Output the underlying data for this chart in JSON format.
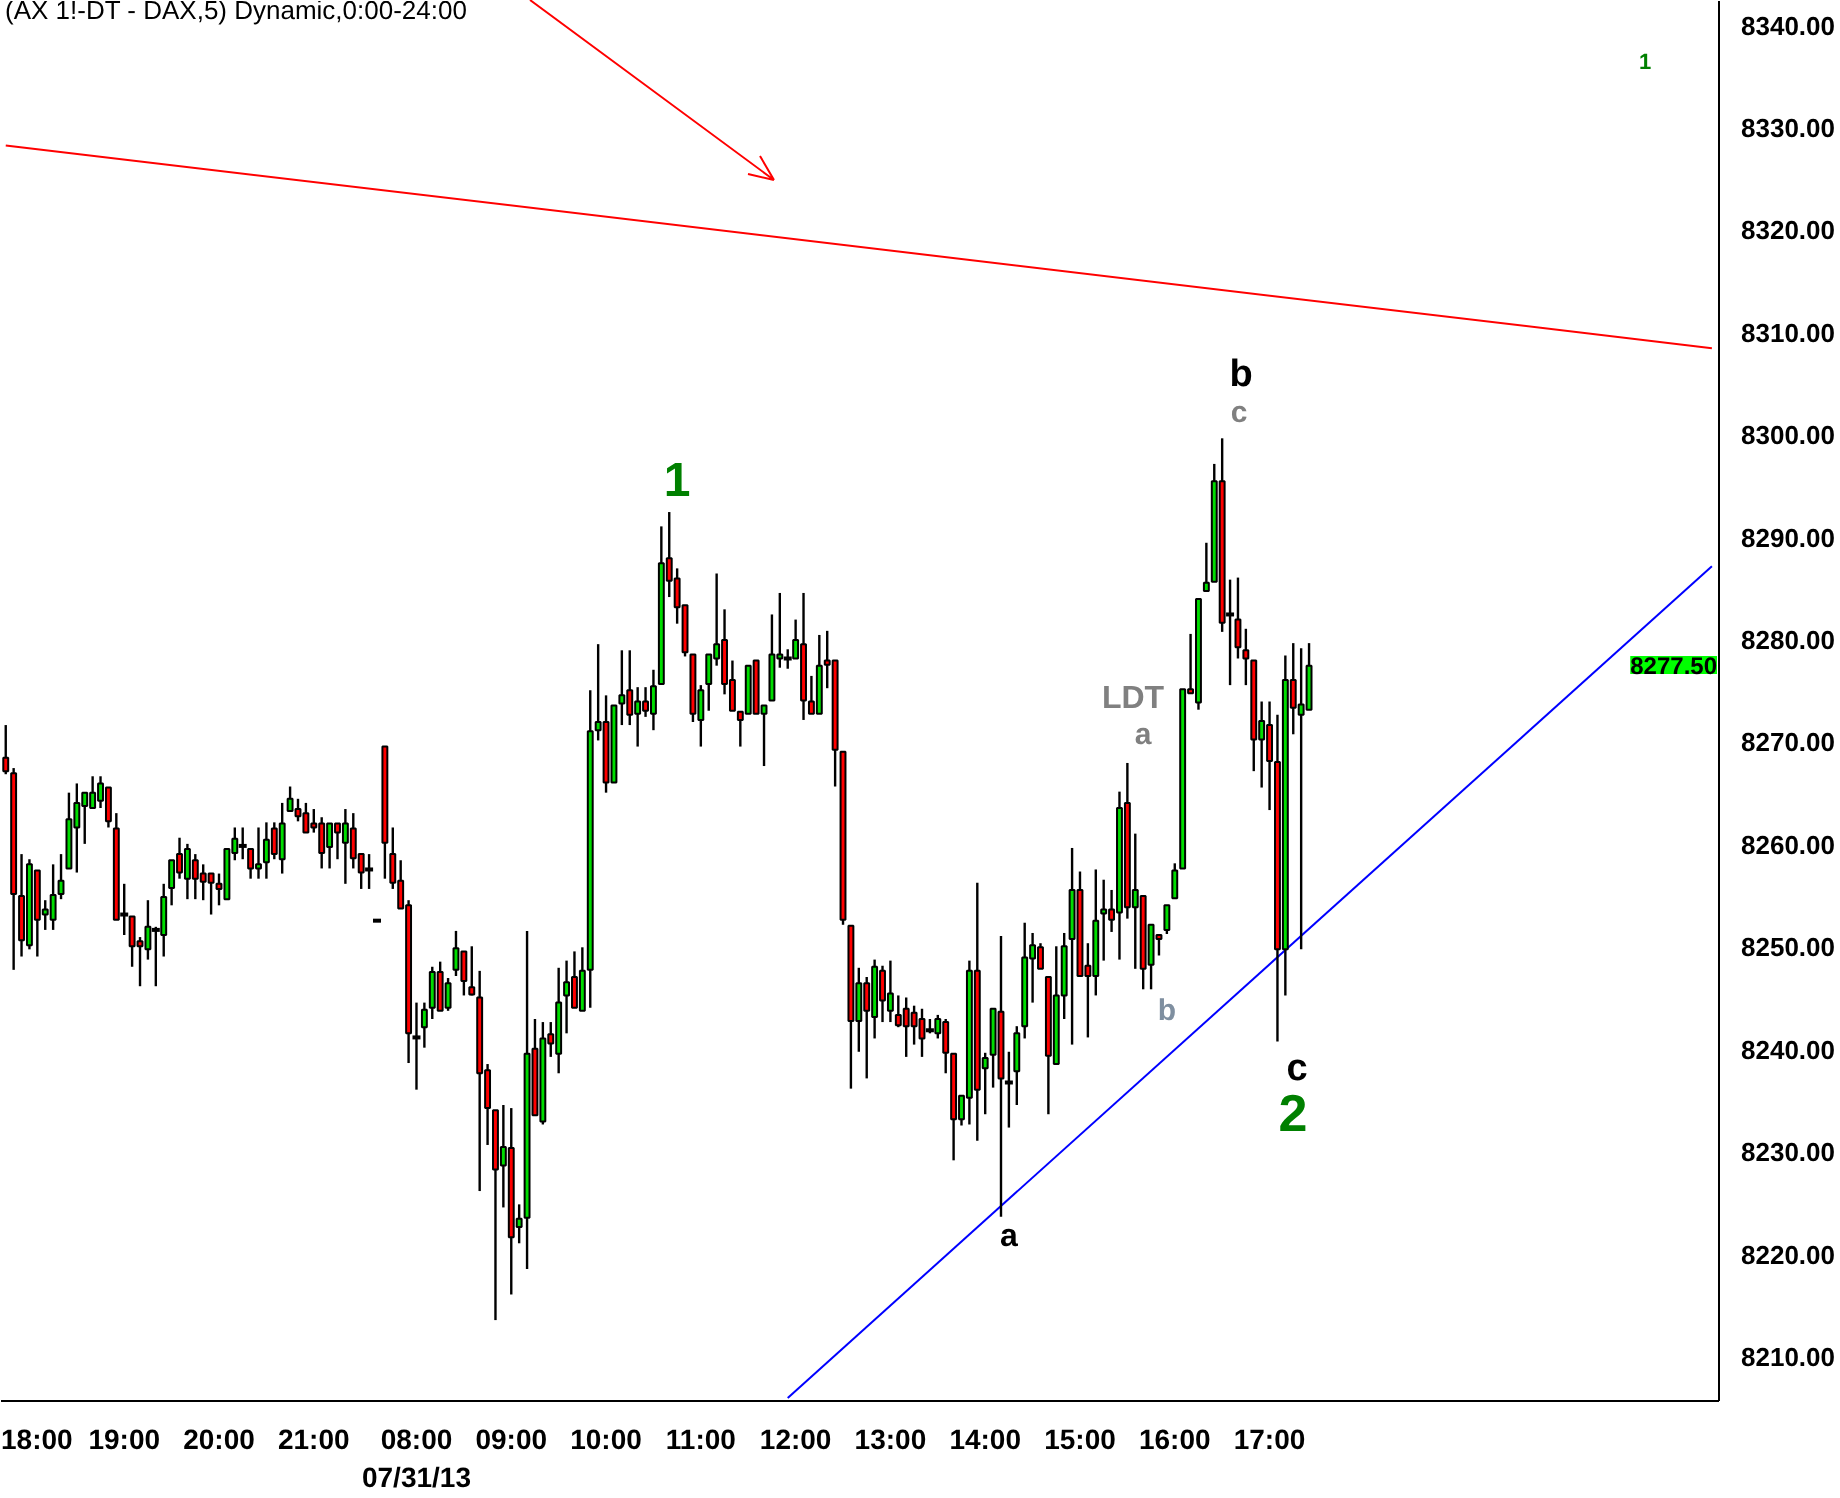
{
  "chart_data": {
    "type": "candlestick",
    "title": "(AX 1!-DT - DAX,5) Dynamic,0:00-24:00",
    "categories": [
      null,
      null,
      null,
      "18:00",
      null,
      null,
      null,
      null,
      null,
      null,
      null,
      null,
      null,
      null,
      null,
      "19:00",
      null,
      null,
      null,
      null,
      null,
      null,
      null,
      null,
      null,
      null,
      null,
      "20:00",
      null,
      null,
      null,
      null,
      null,
      null,
      null,
      null,
      null,
      null,
      null,
      "21:00",
      null,
      null,
      null,
      null,
      null,
      null,
      null,
      null,
      null,
      null,
      null,
      null,
      "08:00\n07/31/13",
      null,
      null,
      null,
      null,
      null,
      null,
      null,
      null,
      null,
      null,
      null,
      "09:00",
      null,
      null,
      null,
      null,
      null,
      null,
      null,
      null,
      null,
      null,
      null,
      "10:00",
      null,
      null,
      null,
      null,
      null,
      null,
      null,
      null,
      null,
      null,
      null,
      "11:00",
      null,
      null,
      null,
      null,
      null,
      null,
      null,
      null,
      null,
      null,
      null,
      "12:00",
      null,
      null,
      null,
      null,
      null,
      null,
      null,
      null,
      null,
      null,
      null,
      "13:00",
      null,
      null,
      null,
      null,
      null,
      null,
      null,
      null,
      null,
      null,
      null,
      "14:00",
      null,
      null,
      null,
      null,
      null,
      null,
      null,
      null,
      null,
      null,
      null,
      "15:00",
      null,
      null,
      null,
      null,
      null,
      null,
      null,
      null,
      null,
      null,
      null,
      "16:00",
      null,
      null,
      null,
      null,
      null,
      null,
      null,
      null,
      null,
      null,
      null,
      "17:00",
      null,
      null,
      null,
      null,
      null,
      null,
      null,
      null,
      null,
      null,
      null,
      null,
      null,
      null,
      null,
      null,
      null,
      null,
      null,
      null,
      null,
      null,
      null,
      null,
      null,
      null,
      null,
      null,
      null,
      null,
      null,
      null,
      null,
      null,
      null,
      null,
      null,
      null,
      null,
      null,
      null,
      null,
      null,
      null,
      null,
      null,
      null,
      null,
      null,
      null,
      null,
      null,
      null,
      null,
      null,
      null
    ],
    "ohlc": [
      [
        8268.5,
        8271.7,
        8266.9,
        8267.2
      ],
      [
        8267.0,
        8267.5,
        8247.8,
        8255.2
      ],
      [
        8255.0,
        8259.1,
        8249.1,
        8250.7
      ],
      [
        8250.2,
        8258.6,
        8249.8,
        8258.1
      ],
      [
        8257.5,
        8257.5,
        8249.1,
        8252.7
      ],
      [
        8253.2,
        8254.6,
        8251.7,
        8253.7
      ],
      [
        8252.7,
        8258.1,
        8251.7,
        8255.1
      ],
      [
        8255.2,
        8259.1,
        8254.7,
        8256.5
      ],
      [
        8257.7,
        8265.1,
        8257.7,
        8262.5
      ],
      [
        8261.7,
        8266.0,
        8257.3,
        8264.1
      ],
      [
        8263.8,
        8265.1,
        8260.1,
        8265.1
      ],
      [
        8263.6,
        8266.7,
        8263.6,
        8265.1
      ],
      [
        8264.3,
        8266.7,
        8263.6,
        8266.0
      ],
      [
        8265.6,
        8265.6,
        8261.7,
        8262.3
      ],
      [
        8261.6,
        8263.1,
        8252.7,
        8252.7
      ],
      [
        8253.2,
        8256.2,
        8251.2,
        8253.2
      ],
      [
        8253.0,
        8253.0,
        8248.1,
        8250.1
      ],
      [
        8250.6,
        8251.0,
        8246.2,
        8250.1
      ],
      [
        8249.8,
        8254.6,
        8248.8,
        8252.0
      ],
      [
        8251.7,
        8252.0,
        8246.2,
        8251.7
      ],
      [
        8251.2,
        8256.2,
        8249.1,
        8254.9
      ],
      [
        8255.8,
        8258.5,
        8254.1,
        8258.5
      ],
      [
        8259.1,
        8260.7,
        8256.7,
        8257.3
      ],
      [
        8256.7,
        8260.1,
        8254.7,
        8259.6
      ],
      [
        8258.5,
        8259.1,
        8254.7,
        8256.7
      ],
      [
        8257.2,
        8258.1,
        8254.6,
        8256.4
      ],
      [
        8257.2,
        8257.2,
        8253.2,
        8256.3
      ],
      [
        8256.2,
        8257.2,
        8254.1,
        8255.7
      ],
      [
        8254.7,
        8259.6,
        8254.7,
        8259.6
      ],
      [
        8259.2,
        8261.7,
        8258.5,
        8260.6
      ],
      [
        8259.9,
        8261.7,
        8258.6,
        8259.9
      ],
      [
        8259.6,
        8259.6,
        8256.7,
        8257.7
      ],
      [
        8257.7,
        8261.7,
        8256.7,
        8258.1
      ],
      [
        8258.3,
        8262.2,
        8256.7,
        8260.5
      ],
      [
        8261.6,
        8262.2,
        8258.6,
        8259.1
      ],
      [
        8258.6,
        8264.1,
        8257.2,
        8262.1
      ],
      [
        8263.3,
        8265.7,
        8263.3,
        8264.5
      ],
      [
        8263.5,
        8264.5,
        8262.3,
        8262.8
      ],
      [
        8263.1,
        8264.1,
        8261.2,
        8261.2
      ],
      [
        8262.1,
        8263.5,
        8261.2,
        8261.7
      ],
      [
        8262.1,
        8262.7,
        8257.7,
        8259.2
      ],
      [
        8259.8,
        8262.1,
        8257.7,
        8262.1
      ],
      [
        8262.1,
        8262.1,
        8258.6,
        8261.2
      ],
      [
        8260.2,
        8263.5,
        8256.2,
        8262.1
      ],
      [
        8261.6,
        8263.1,
        8257.7,
        8258.7
      ],
      [
        8259.1,
        8259.1,
        8255.7,
        8257.3
      ],
      [
        8257.6,
        8259.1,
        8255.7,
        8257.6
      ],
      [
        8252.6,
        8252.6,
        8252.6,
        8252.6
      ],
      [
        8269.6,
        8269.6,
        8256.7,
        8260.2
      ],
      [
        8259.1,
        8261.7,
        8255.7,
        8256.3
      ],
      [
        8256.5,
        8258.5,
        8253.8,
        8253.8
      ],
      [
        8254.1,
        8254.6,
        8238.7,
        8241.6
      ],
      [
        8241.2,
        8244.6,
        8236.1,
        8241.2
      ],
      [
        8242.2,
        8244.6,
        8240.2,
        8243.9
      ],
      [
        8244.1,
        8248.1,
        8243.0,
        8247.6
      ],
      [
        8247.6,
        8248.6,
        8243.8,
        8243.8
      ],
      [
        8244.1,
        8247.0,
        8243.8,
        8246.5
      ],
      [
        8247.8,
        8251.6,
        8247.2,
        8249.9
      ],
      [
        8249.6,
        8249.6,
        8245.3,
        8246.7
      ],
      [
        8246.1,
        8250.1,
        8245.3,
        8245.4
      ],
      [
        8245.1,
        8247.7,
        8226.2,
        8237.7
      ],
      [
        8238.0,
        8238.6,
        8230.7,
        8234.3
      ],
      [
        8234.1,
        8234.1,
        8213.6,
        8228.3
      ],
      [
        8228.7,
        8234.6,
        8224.6,
        8230.5
      ],
      [
        8230.4,
        8234.3,
        8216.1,
        8221.7
      ],
      [
        8222.7,
        8224.9,
        8221.1,
        8223.5
      ],
      [
        8223.6,
        8251.6,
        8218.6,
        8239.6
      ],
      [
        8240.1,
        8243.0,
        8233.6,
        8233.6
      ],
      [
        8233.0,
        8242.7,
        8232.7,
        8241.1
      ],
      [
        8241.5,
        8242.7,
        8239.3,
        8240.6
      ],
      [
        8239.6,
        8248.0,
        8237.7,
        8244.6
      ],
      [
        8245.3,
        8248.7,
        8241.6,
        8246.6
      ],
      [
        8247.1,
        8249.6,
        8244.1,
        8244.1
      ],
      [
        8243.8,
        8250.0,
        8243.8,
        8247.7
      ],
      [
        8247.8,
        8275.1,
        8244.1,
        8271.1
      ],
      [
        8271.2,
        8279.6,
        8270.2,
        8272.0
      ],
      [
        8272.0,
        8274.6,
        8265.1,
        8266.1
      ],
      [
        8266.1,
        8273.6,
        8266.1,
        8273.6
      ],
      [
        8273.8,
        8279.0,
        8271.7,
        8274.6
      ],
      [
        8275.1,
        8279.0,
        8271.7,
        8272.7
      ],
      [
        8272.8,
        8275.4,
        8269.6,
        8274.0
      ],
      [
        8274.0,
        8275.4,
        8272.5,
        8273.1
      ],
      [
        8272.8,
        8277.1,
        8271.2,
        8275.5
      ],
      [
        8275.7,
        8291.1,
        8275.7,
        8287.5
      ],
      [
        8288.0,
        8292.5,
        8284.2,
        8285.8
      ],
      [
        8286.0,
        8287.0,
        8281.6,
        8283.2
      ],
      [
        8283.4,
        8283.4,
        8278.4,
        8278.8
      ],
      [
        8278.6,
        8278.6,
        8272.0,
        8272.8
      ],
      [
        8272.2,
        8275.6,
        8269.6,
        8275.1
      ],
      [
        8275.7,
        8278.6,
        8273.1,
        8278.6
      ],
      [
        8278.2,
        8286.5,
        8277.5,
        8279.6
      ],
      [
        8280.0,
        8283.0,
        8274.7,
        8275.7
      ],
      [
        8276.1,
        8278.0,
        8273.1,
        8273.1
      ],
      [
        8273.0,
        8273.0,
        8269.6,
        8272.2
      ],
      [
        8272.8,
        8277.5,
        8272.8,
        8277.5
      ],
      [
        8278.0,
        8278.0,
        8272.8,
        8272.8
      ],
      [
        8272.8,
        8273.6,
        8267.7,
        8273.6
      ],
      [
        8274.1,
        8282.5,
        8274.1,
        8278.6
      ],
      [
        8278.2,
        8284.6,
        8277.3,
        8278.6
      ],
      [
        8278.2,
        8279.1,
        8277.2,
        8278.2
      ],
      [
        8278.2,
        8282.0,
        8278.2,
        8280.0
      ],
      [
        8279.6,
        8284.6,
        8272.2,
        8274.1
      ],
      [
        8274.0,
        8276.5,
        8272.8,
        8272.8
      ],
      [
        8272.8,
        8280.5,
        8272.8,
        8277.5
      ],
      [
        8278.0,
        8280.9,
        8275.3,
        8277.6
      ],
      [
        8278.0,
        8278.0,
        8265.7,
        8269.3
      ],
      [
        8269.1,
        8269.1,
        8252.2,
        8252.7
      ],
      [
        8252.1,
        8252.1,
        8236.2,
        8242.8
      ],
      [
        8242.8,
        8248.0,
        8239.8,
        8246.5
      ],
      [
        8246.5,
        8247.1,
        8237.2,
        8243.8
      ],
      [
        8243.2,
        8248.8,
        8241.1,
        8248.1
      ],
      [
        8247.7,
        8248.2,
        8242.7,
        8244.8
      ],
      [
        8243.8,
        8248.7,
        8242.7,
        8245.5
      ],
      [
        8243.4,
        8245.3,
        8242.2,
        8242.4
      ],
      [
        8244.0,
        8245.1,
        8239.3,
        8242.3
      ],
      [
        8243.6,
        8244.3,
        8240.5,
        8242.3
      ],
      [
        8243.0,
        8244.0,
        8239.3,
        8241.1
      ],
      [
        8241.9,
        8243.0,
        8241.6,
        8241.9
      ],
      [
        8241.6,
        8243.4,
        8241.1,
        8243.0
      ],
      [
        8242.7,
        8243.0,
        8237.7,
        8239.7
      ],
      [
        8239.6,
        8239.6,
        8229.2,
        8233.2
      ],
      [
        8233.2,
        8235.5,
        8232.6,
        8235.5
      ],
      [
        8235.3,
        8248.7,
        8232.7,
        8247.7
      ],
      [
        8247.7,
        8256.3,
        8231.1,
        8236.1
      ],
      [
        8238.2,
        8239.7,
        8233.7,
        8239.2
      ],
      [
        8239.5,
        8244.0,
        8236.3,
        8244.0
      ],
      [
        8243.7,
        8251.1,
        8223.7,
        8237.2
      ],
      [
        8236.8,
        8239.8,
        8232.4,
        8236.8
      ],
      [
        8237.9,
        8242.3,
        8234.6,
        8241.6
      ],
      [
        8242.3,
        8252.4,
        8241.1,
        8249.0
      ],
      [
        8248.9,
        8251.4,
        8244.6,
        8250.2
      ],
      [
        8250.0,
        8250.4,
        8247.9,
        8247.9
      ],
      [
        8247.1,
        8247.1,
        8233.7,
        8239.4
      ],
      [
        8238.6,
        8250.1,
        8238.6,
        8245.3
      ],
      [
        8245.3,
        8251.4,
        8243.0,
        8250.1
      ],
      [
        8250.8,
        8259.7,
        8240.5,
        8255.6
      ],
      [
        8255.6,
        8257.4,
        8247.2,
        8247.2
      ],
      [
        8248.2,
        8250.4,
        8241.2,
        8247.2
      ],
      [
        8247.2,
        8257.6,
        8245.3,
        8252.6
      ],
      [
        8253.3,
        8256.6,
        8248.7,
        8253.7
      ],
      [
        8253.7,
        8255.6,
        8251.5,
        8252.7
      ],
      [
        8253.4,
        8265.2,
        8248.8,
        8263.6
      ],
      [
        8264.1,
        8268.0,
        8252.8,
        8253.9
      ],
      [
        8253.9,
        8261.1,
        8247.9,
        8255.6
      ],
      [
        8255.0,
        8255.0,
        8245.9,
        8247.9
      ],
      [
        8248.3,
        8252.2,
        8245.9,
        8252.2
      ],
      [
        8251.2,
        8251.2,
        8249.2,
        8250.8
      ],
      [
        8251.7,
        8254.1,
        8251.3,
        8254.1
      ],
      [
        8254.8,
        8258.2,
        8254.8,
        8257.5
      ],
      [
        8257.7,
        8275.2,
        8257.7,
        8275.2
      ],
      [
        8275.2,
        8280.6,
        8274.8,
        8274.8
      ],
      [
        8273.9,
        8284.0,
        8273.2,
        8284.0
      ],
      [
        8284.8,
        8289.5,
        8284.8,
        8285.6
      ],
      [
        8285.7,
        8297.2,
        8285.7,
        8295.5
      ],
      [
        8295.5,
        8299.7,
        8280.8,
        8281.7
      ],
      [
        8282.5,
        8285.9,
        8275.6,
        8282.5
      ],
      [
        8282.0,
        8286.1,
        8278.2,
        8279.3
      ],
      [
        8279.0,
        8281.1,
        8275.6,
        8278.2
      ],
      [
        8278.0,
        8278.0,
        8267.2,
        8270.3
      ],
      [
        8270.3,
        8274.0,
        8265.6,
        8272.1
      ],
      [
        8271.7,
        8274.0,
        8263.4,
        8268.2
      ],
      [
        8268.1,
        8272.7,
        8240.8,
        8249.8
      ],
      [
        8249.8,
        8278.5,
        8245.3,
        8276.1
      ],
      [
        8276.1,
        8279.7,
        8270.8,
        8273.4
      ],
      [
        8272.7,
        8279.2,
        8249.8,
        8273.7
      ],
      [
        8273.2,
        8279.7,
        8273.2,
        8277.5
      ],
      null,
      null,
      null,
      null,
      null,
      null,
      null,
      null,
      null,
      null,
      null,
      null,
      null,
      null,
      null,
      null,
      null,
      null,
      null,
      null,
      null,
      null,
      null,
      null,
      null,
      null,
      null,
      null,
      null,
      null,
      null,
      null,
      null,
      null,
      null,
      null,
      null,
      null,
      null,
      null,
      null,
      null,
      null,
      null,
      null,
      null,
      null,
      null,
      null,
      null,
      null
    ],
    "colors": [
      "#ff0000",
      "#ff0000",
      "#ff0000",
      "#00dd00",
      "#ff0000",
      "#00dd00",
      "#00dd00",
      "#00dd00",
      "#00dd00",
      "#00dd00",
      "#00dd00",
      "#00dd00",
      "#00dd00",
      "#ff0000",
      "#ff0000",
      "#000000",
      "#ff0000",
      "#ff0000",
      "#00dd00",
      "#000000",
      "#00dd00",
      "#00dd00",
      "#ff0000",
      "#00dd00",
      "#ff0000",
      "#ff0000",
      "#ff0000",
      "#ff0000",
      "#00dd00",
      "#00dd00",
      "#000000",
      "#ff0000",
      "#00dd00",
      "#00dd00",
      "#ff0000",
      "#00dd00",
      "#00dd00",
      "#ff0000",
      "#ff0000",
      "#ff0000",
      "#ff0000",
      "#00dd00",
      "#ff0000",
      "#00dd00",
      "#ff0000",
      "#ff0000",
      "#000000",
      "#000000",
      "#ff0000",
      "#ff0000",
      "#ff0000",
      "#ff0000",
      "#000000",
      "#00dd00",
      "#00dd00",
      "#ff0000",
      "#00dd00",
      "#00dd00",
      "#ff0000",
      "#ff0000",
      "#ff0000",
      "#ff0000",
      "#ff0000",
      "#00dd00",
      "#ff0000",
      "#00dd00",
      "#00dd00",
      "#ff0000",
      "#00dd00",
      "#ff0000",
      "#00dd00",
      "#00dd00",
      "#ff0000",
      "#00dd00",
      "#00dd00",
      "#00dd00",
      "#ff0000",
      "#00dd00",
      "#00dd00",
      "#ff0000",
      "#00dd00",
      "#ff0000",
      "#00dd00",
      "#00dd00",
      "#ff0000",
      "#ff0000",
      "#ff0000",
      "#ff0000",
      "#00dd00",
      "#00dd00",
      "#00dd00",
      "#ff0000",
      "#ff0000",
      "#ff0000",
      "#00dd00",
      "#ff0000",
      "#00dd00",
      "#00dd00",
      "#00dd00",
      "#000000",
      "#00dd00",
      "#ff0000",
      "#ff0000",
      "#00dd00",
      "#ff0000",
      "#ff0000",
      "#ff0000",
      "#ff0000",
      "#00dd00",
      "#ff0000",
      "#00dd00",
      "#ff0000",
      "#00dd00",
      "#ff0000",
      "#ff0000",
      "#ff0000",
      "#ff0000",
      "#000000",
      "#00dd00",
      "#ff0000",
      "#ff0000",
      "#00dd00",
      "#00dd00",
      "#ff0000",
      "#00dd00",
      "#00dd00",
      "#ff0000",
      "#000000",
      "#00dd00",
      "#00dd00",
      "#00dd00",
      "#ff0000",
      "#ff0000",
      "#00dd00",
      "#00dd00",
      "#00dd00",
      "#ff0000",
      "#ff0000",
      "#00dd00",
      "#00dd00",
      "#ff0000",
      "#00dd00",
      "#ff0000",
      "#00dd00",
      "#ff0000",
      "#00dd00",
      "#ff0000",
      "#00dd00",
      "#00dd00",
      "#00dd00",
      "#ff0000",
      "#00dd00",
      "#00dd00",
      "#00dd00",
      "#ff0000",
      "#000000",
      "#ff0000",
      "#ff0000",
      "#ff0000",
      "#00dd00",
      "#ff0000",
      "#ff0000",
      "#00dd00",
      "#ff0000",
      "#00dd00",
      "#00dd00",
      null,
      null,
      null,
      null,
      null,
      null,
      null,
      null,
      null,
      null,
      null,
      null,
      null,
      null,
      null,
      null,
      null,
      null,
      null,
      null,
      null,
      null,
      null,
      null,
      null,
      null,
      null,
      null,
      null,
      null,
      null,
      null,
      null,
      null,
      null,
      null,
      null,
      null,
      null,
      null,
      null,
      null,
      null,
      null,
      null,
      null,
      null,
      null,
      null,
      null,
      null
    ],
    "series": [
      {
        "type": "line",
        "color": "#ff0000",
        "values": [
          8328.3,
          null,
          null,
          null,
          null,
          null,
          null,
          null,
          null,
          null,
          null,
          null,
          null,
          null,
          null,
          null,
          null,
          null,
          null,
          null,
          null,
          null,
          null,
          null,
          null,
          null,
          null,
          null,
          null,
          null,
          null,
          null,
          null,
          null,
          null,
          null,
          null,
          null,
          null,
          null,
          null,
          null,
          null,
          null,
          null,
          null,
          null,
          null,
          null,
          null,
          null,
          null,
          null,
          null,
          null,
          null,
          null,
          null,
          null,
          null,
          null,
          null,
          null,
          null,
          null,
          null,
          null,
          null,
          null,
          null,
          null,
          null,
          null,
          null,
          null,
          null,
          null,
          null,
          null,
          null,
          null,
          null,
          null,
          null,
          null,
          null,
          null,
          null,
          null,
          null,
          null,
          null,
          null,
          null,
          null,
          null,
          null,
          null,
          null,
          null,
          null,
          null,
          null,
          null,
          null,
          null,
          null,
          null,
          null,
          null,
          null,
          null,
          null,
          null,
          null,
          null,
          null,
          null,
          null,
          null,
          null,
          null,
          null,
          null,
          null,
          null,
          null,
          null,
          null,
          null,
          null,
          null,
          null,
          null,
          null,
          null,
          null,
          null,
          null,
          null,
          null,
          null,
          null,
          null,
          null,
          null,
          null,
          null,
          null,
          null,
          null,
          null,
          null,
          null,
          null,
          null,
          null,
          null,
          null,
          null,
          null,
          null,
          null,
          null,
          null,
          null,
          null,
          null,
          null,
          null,
          null,
          null,
          null,
          null,
          null,
          null,
          null,
          null,
          null,
          null,
          null,
          null,
          null,
          null,
          null,
          null,
          null,
          null,
          null,
          null,
          null,
          null,
          null,
          null,
          null,
          null,
          null,
          null,
          null,
          null,
          null,
          null,
          null,
          null,
          null,
          null,
          null,
          null,
          null,
          null,
          null,
          null,
          null,
          null,
          null,
          null,
          8308.5
        ]
      },
      {
        "type": "line",
        "color": "#0000ff",
        "values": [
          null,
          null,
          null,
          null,
          null,
          null,
          null,
          null,
          null,
          null,
          null,
          null,
          null,
          null,
          null,
          null,
          null,
          null,
          null,
          null,
          null,
          null,
          null,
          null,
          null,
          null,
          null,
          null,
          null,
          null,
          null,
          null,
          null,
          null,
          null,
          null,
          null,
          null,
          null,
          null,
          null,
          null,
          null,
          null,
          null,
          null,
          null,
          null,
          null,
          null,
          null,
          null,
          null,
          null,
          null,
          null,
          null,
          null,
          null,
          null,
          null,
          null,
          null,
          null,
          null,
          null,
          null,
          null,
          null,
          null,
          null,
          null,
          null,
          null,
          null,
          null,
          null,
          null,
          null,
          null,
          null,
          null,
          null,
          null,
          null,
          null,
          null,
          null,
          null,
          null,
          null,
          null,
          null,
          null,
          null,
          null,
          null,
          null,
          null,
          8206.0,
          null,
          null,
          null,
          null,
          null,
          null,
          null,
          null,
          null,
          null,
          null,
          null,
          null,
          null,
          null,
          null,
          null,
          null,
          null,
          null,
          null,
          null,
          null,
          null,
          null,
          null,
          null,
          null,
          null,
          null,
          null,
          null,
          null,
          null,
          null,
          null,
          null,
          null,
          null,
          null,
          null,
          null,
          null,
          null,
          null,
          null,
          null,
          null,
          null,
          null,
          null,
          null,
          null,
          null,
          null,
          null,
          null,
          null,
          null,
          null,
          null,
          null,
          null,
          null,
          null,
          null,
          null,
          null,
          null,
          null,
          null,
          null,
          null,
          null,
          null,
          null,
          null,
          null,
          null,
          null,
          null,
          null,
          null,
          null,
          null,
          null,
          null,
          null,
          null,
          null,
          null,
          null,
          null,
          null,
          null,
          null,
          null,
          null,
          null,
          null,
          null,
          null,
          null,
          null,
          null,
          null,
          null,
          null,
          null,
          null,
          null,
          null,
          null,
          null,
          null,
          null,
          8287.2
        ]
      }
    ],
    "ylim": [
      8205.7,
      8342.4
    ],
    "yticks": [
      {
        "value": 8210,
        "label": "8210.00"
      },
      {
        "value": 8220,
        "label": "8220.00"
      },
      {
        "value": 8230,
        "label": "8230.00"
      },
      {
        "value": 8240,
        "label": "8240.00"
      },
      {
        "value": 8250,
        "label": "8250.00"
      },
      {
        "value": 8260,
        "label": "8260.00"
      },
      {
        "value": 8270,
        "label": "8270.00"
      },
      {
        "value": 8280,
        "label": "8280.00"
      },
      {
        "value": 8290,
        "label": "8290.00"
      },
      {
        "value": 8300,
        "label": "8300.00"
      },
      {
        "value": 8310,
        "label": "8310.00"
      },
      {
        "value": 8320,
        "label": "8320.00"
      },
      {
        "value": 8330,
        "label": "8330.00"
      },
      {
        "value": 8340,
        "label": "8340.00"
      }
    ],
    "annotations": [
      "1",
      "b",
      "c",
      "LDT",
      "a",
      "b",
      "a",
      "c",
      "2",
      "1",
      "8277.50"
    ],
    "grid": false
  }
}
